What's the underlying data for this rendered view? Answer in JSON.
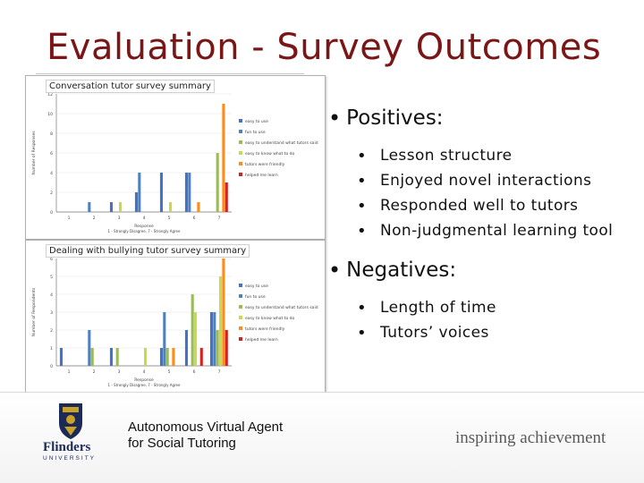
{
  "slide": {
    "title": "Evaluation - Survey Outcomes",
    "footer_line1": "Autonomous Virtual Agent",
    "footer_line2": "for Social Tutoring",
    "tagline": "inspiring achievement",
    "logo_word": "Flinders",
    "logo_sub": "UNIVERSITY"
  },
  "bullets": {
    "positives_label": "Positives:",
    "positives": [
      "Lesson structure",
      "Enjoyed novel interactions",
      "Responded well to tutors",
      "Non-judgmental learning tool"
    ],
    "negatives_label": "Negatives:",
    "negatives": [
      "Length of time",
      "Tutors’ voices"
    ],
    "bullet_glyph": "•"
  },
  "colors": {
    "title": "#7a1616",
    "series": [
      "#4472c4",
      "#4f81bd",
      "#9bbb59",
      "#c8d94a",
      "#ff8c1a",
      "#d62020"
    ],
    "extra_bar": "#7030a0",
    "chart2_extra_bar": "#5b3a9a"
  },
  "chart_data": [
    {
      "type": "bar",
      "title": "Conversation tutor survey summary",
      "xlabel": "Response",
      "xnote": "1 - Strongly Disagree, 7 - Strongly Agree",
      "ylabel": "Number of Responses",
      "categories": [
        "1",
        "2",
        "3",
        "4",
        "5",
        "6",
        "7"
      ],
      "ylim": [
        0,
        12
      ],
      "yticks": [
        "0",
        "2",
        "4",
        "6",
        "8",
        "10",
        "12"
      ],
      "series": [
        {
          "name": "easy to use",
          "values": [
            0,
            0,
            1,
            2,
            4,
            4,
            0
          ]
        },
        {
          "name": "fun to use",
          "values": [
            0,
            1,
            0,
            4,
            0,
            4,
            0
          ]
        },
        {
          "name": "easy to understand what tutors said",
          "values": [
            0,
            0,
            0,
            0,
            0,
            0,
            6
          ]
        },
        {
          "name": "easy to know what to do",
          "values": [
            0,
            0,
            1,
            0,
            1,
            0,
            0
          ]
        },
        {
          "name": "tutors were friendly",
          "values": [
            0,
            0,
            0,
            0,
            0,
            1,
            11
          ]
        },
        {
          "name": "helped me learn",
          "values": [
            0,
            0,
            0,
            0,
            0,
            0,
            3
          ]
        }
      ]
    },
    {
      "type": "bar",
      "title": "Dealing with bullying tutor survey summary",
      "xlabel": "Response",
      "xnote": "1 - Strongly Disagree, 7 - Strongly Agree",
      "ylabel": "Number of Respondents",
      "categories": [
        "1",
        "2",
        "3",
        "4",
        "5",
        "6",
        "7"
      ],
      "ylim": [
        0,
        6
      ],
      "yticks": [
        "0",
        "1",
        "2",
        "3",
        "4",
        "5",
        "6"
      ],
      "series": [
        {
          "name": "easy to use",
          "values": [
            1,
            0,
            1,
            0,
            1,
            2,
            3
          ]
        },
        {
          "name": "fun to use",
          "values": [
            0,
            2,
            0,
            0,
            3,
            0,
            3
          ]
        },
        {
          "name": "easy to understand what tutors said",
          "values": [
            0,
            1,
            1,
            0,
            1,
            4,
            2
          ]
        },
        {
          "name": "easy to know what to do",
          "values": [
            0,
            0,
            0,
            1,
            0,
            3,
            5
          ]
        },
        {
          "name": "tutors were friendly",
          "values": [
            0,
            0,
            0,
            0,
            1,
            0,
            6
          ]
        },
        {
          "name": "helped me learn",
          "values": [
            0,
            0,
            0,
            0,
            0,
            1,
            2
          ]
        }
      ]
    }
  ]
}
